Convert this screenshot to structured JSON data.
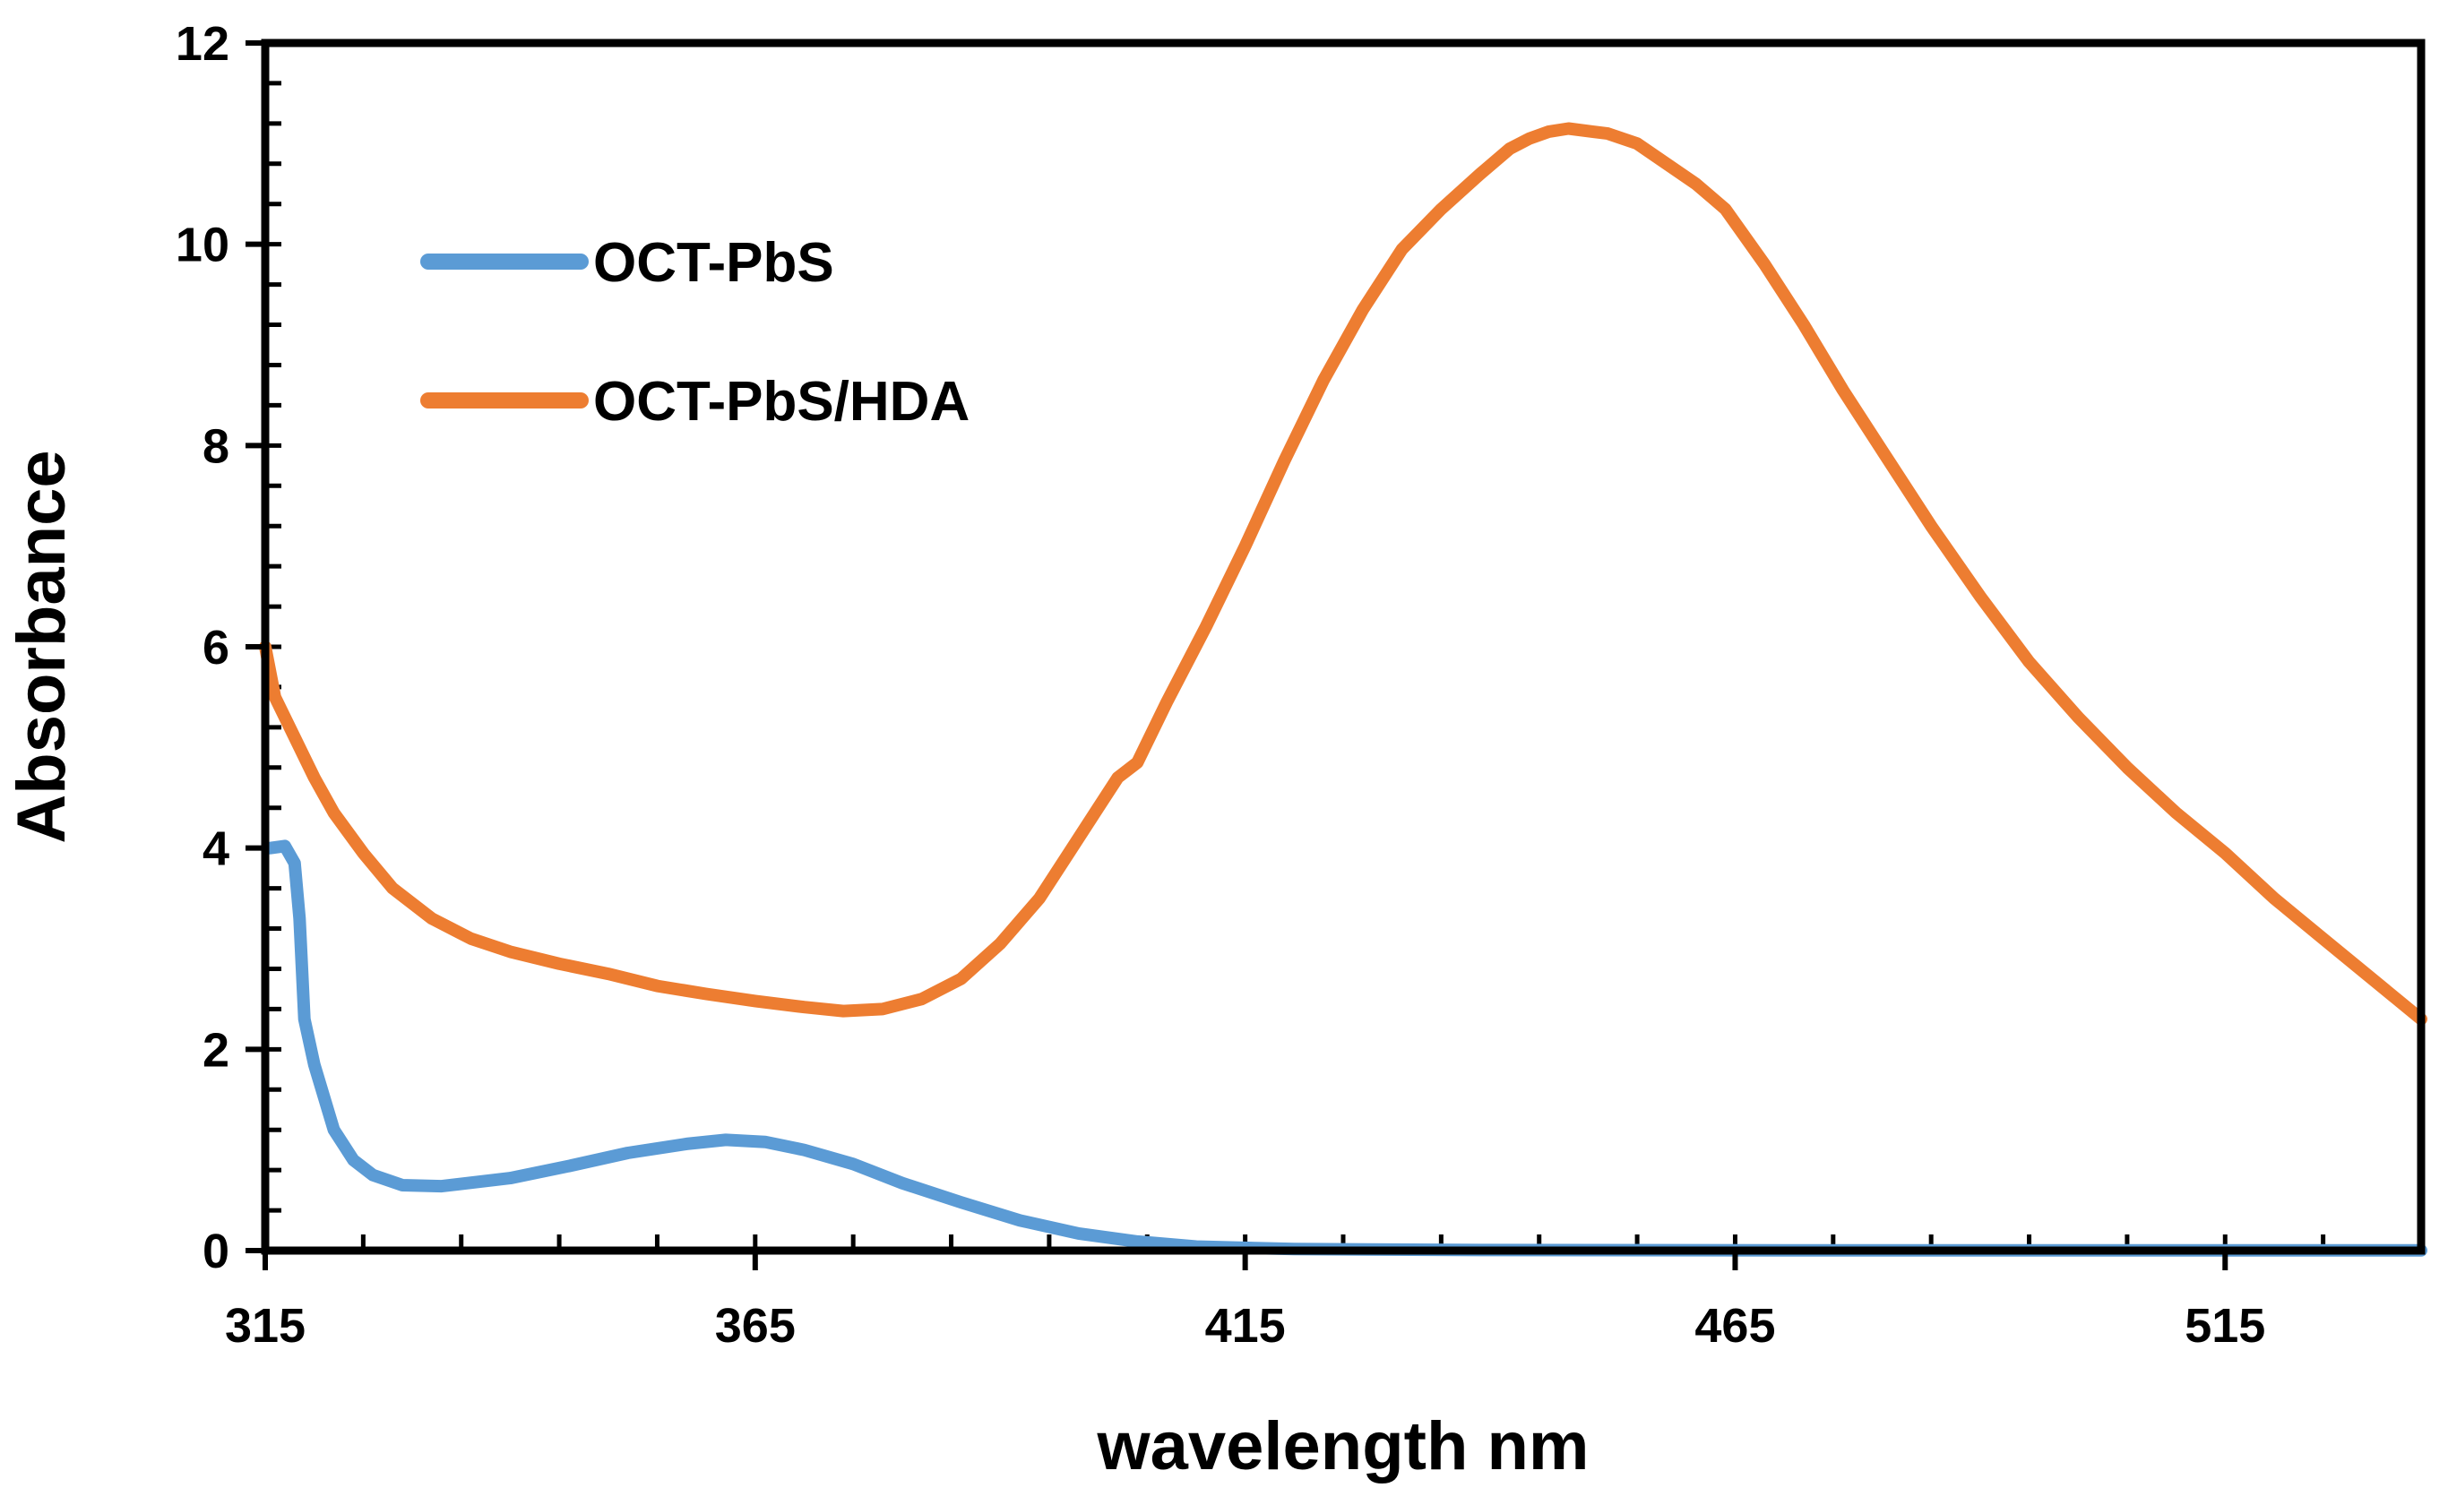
{
  "chart_data": {
    "type": "line",
    "title": "",
    "xlabel": "wavelength nm",
    "ylabel": "Absorbance",
    "xlim": [
      315,
      535
    ],
    "ylim": [
      0,
      12
    ],
    "x_ticks": [
      "315",
      "365",
      "415",
      "465",
      "515"
    ],
    "y_ticks": [
      "0",
      "2",
      "4",
      "6",
      "8",
      "10",
      "12"
    ],
    "grid": false,
    "legend_position": "top-left",
    "series": [
      {
        "name": "OCT-PbS",
        "color": "#5B9BD5",
        "points": [
          [
            315.5,
            4.0
          ],
          [
            317,
            4.02
          ],
          [
            318,
            3.85
          ],
          [
            318.5,
            3.3
          ],
          [
            319,
            2.3
          ],
          [
            320,
            1.85
          ],
          [
            322,
            1.2
          ],
          [
            324,
            0.9
          ],
          [
            326,
            0.75
          ],
          [
            329,
            0.65
          ],
          [
            333,
            0.64
          ],
          [
            340,
            0.72
          ],
          [
            346,
            0.84
          ],
          [
            352,
            0.97
          ],
          [
            358,
            1.06
          ],
          [
            362,
            1.1
          ],
          [
            366,
            1.08
          ],
          [
            370,
            1.0
          ],
          [
            375,
            0.86
          ],
          [
            380,
            0.67
          ],
          [
            386,
            0.48
          ],
          [
            392,
            0.3
          ],
          [
            398,
            0.17
          ],
          [
            404,
            0.09
          ],
          [
            410,
            0.04
          ],
          [
            420,
            0.015
          ],
          [
            440,
            0.005
          ],
          [
            470,
            0.003
          ],
          [
            500,
            0.002
          ],
          [
            535,
            0.002
          ]
        ]
      },
      {
        "name": "OCT-PbS/HDA",
        "color": "#ED7D31",
        "points": [
          [
            315,
            6.0
          ],
          [
            316,
            5.5
          ],
          [
            318,
            5.1
          ],
          [
            320,
            4.7
          ],
          [
            322,
            4.35
          ],
          [
            325,
            3.95
          ],
          [
            328,
            3.6
          ],
          [
            332,
            3.3
          ],
          [
            336,
            3.1
          ],
          [
            340,
            2.97
          ],
          [
            345,
            2.85
          ],
          [
            350,
            2.75
          ],
          [
            355,
            2.63
          ],
          [
            360,
            2.55
          ],
          [
            365,
            2.48
          ],
          [
            370,
            2.42
          ],
          [
            374,
            2.38
          ],
          [
            378,
            2.4
          ],
          [
            382,
            2.5
          ],
          [
            386,
            2.7
          ],
          [
            390,
            3.05
          ],
          [
            394,
            3.5
          ],
          [
            397,
            3.95
          ],
          [
            400,
            4.4
          ],
          [
            402,
            4.7
          ],
          [
            404,
            4.85
          ],
          [
            407,
            5.45
          ],
          [
            411,
            6.2
          ],
          [
            415,
            7.0
          ],
          [
            419,
            7.85
          ],
          [
            423,
            8.65
          ],
          [
            427,
            9.35
          ],
          [
            431,
            9.95
          ],
          [
            435,
            10.35
          ],
          [
            439,
            10.7
          ],
          [
            442,
            10.95
          ],
          [
            444,
            11.05
          ],
          [
            446,
            11.12
          ],
          [
            448,
            11.15
          ],
          [
            452,
            11.1
          ],
          [
            455,
            11.0
          ],
          [
            458,
            10.8
          ],
          [
            461,
            10.6
          ],
          [
            464,
            10.35
          ],
          [
            468,
            9.8
          ],
          [
            472,
            9.2
          ],
          [
            476,
            8.55
          ],
          [
            480,
            7.95
          ],
          [
            485,
            7.2
          ],
          [
            490,
            6.5
          ],
          [
            495,
            5.85
          ],
          [
            500,
            5.3
          ],
          [
            505,
            4.8
          ],
          [
            510,
            4.35
          ],
          [
            515,
            3.95
          ],
          [
            520,
            3.5
          ],
          [
            525,
            3.1
          ],
          [
            530,
            2.7
          ],
          [
            535,
            2.3
          ]
        ]
      }
    ]
  }
}
